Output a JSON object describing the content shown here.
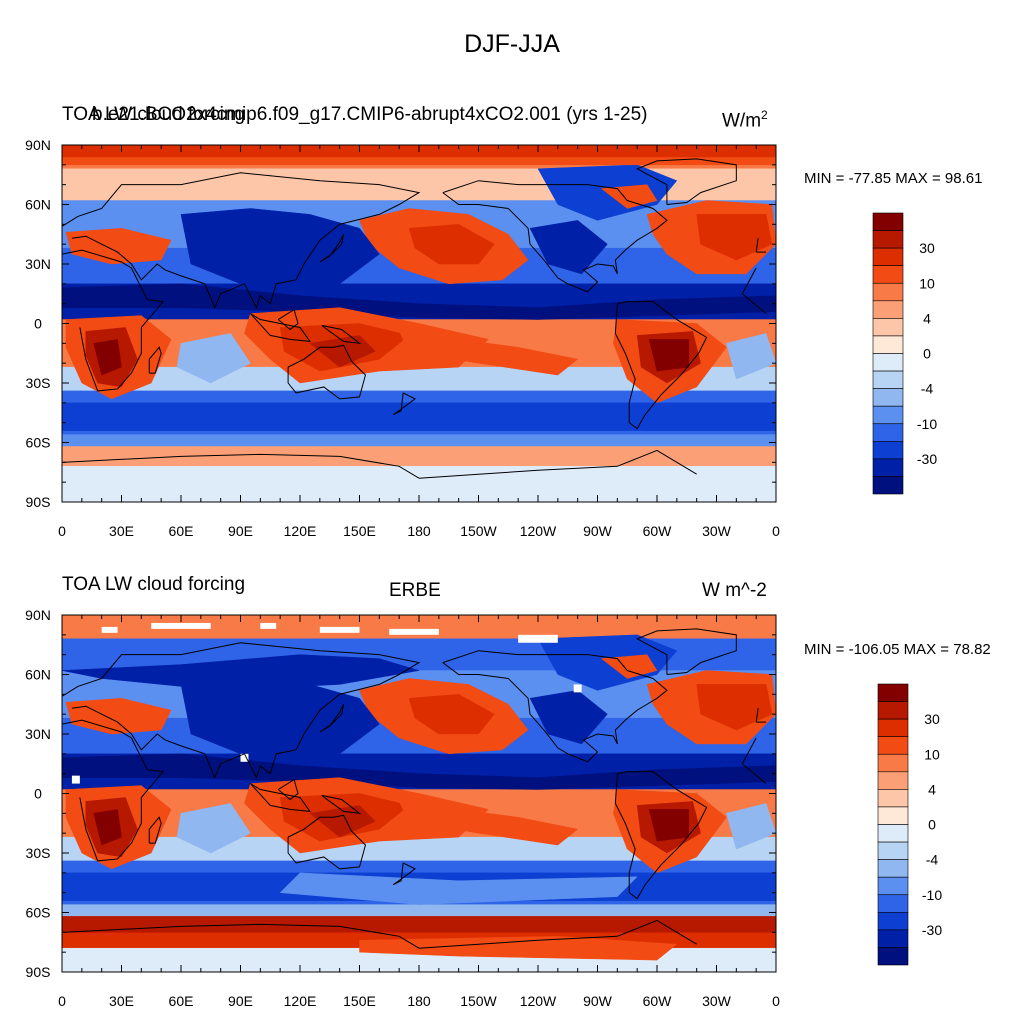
{
  "main_title": "DJF-JJA",
  "panels": [
    {
      "left_title": "TOA LW cloud forcing",
      "center_title": "b.e21.BCO2x4cmip6.f09_g17.CMIP6-abrupt4xCO2.001 (yrs 1-25)",
      "units": "W/m",
      "units_sup": "2",
      "stats": "MIN = -77.85 MAX =  98.61"
    },
    {
      "left_title": "TOA LW cloud forcing",
      "center_title": "ERBE",
      "units": "W m^-2",
      "units_sup": "",
      "stats": "MIN = -106.05 MAX =  78.82"
    }
  ],
  "axes": {
    "lat_ticks": [
      "90N",
      "60N",
      "30N",
      "0",
      "30S",
      "60S",
      "90S"
    ],
    "lon_ticks": [
      "0",
      "30E",
      "60E",
      "90E",
      "120E",
      "150E",
      "180",
      "150W",
      "120W",
      "90W",
      "60W",
      "30W",
      "0"
    ]
  },
  "colorbar": {
    "labels": [
      "30",
      "10",
      "4",
      "0",
      "-4",
      "-10",
      "-30"
    ],
    "levels_top_to_bottom": [
      ">50",
      "40",
      "30",
      "20",
      "10",
      "6",
      "4",
      "2",
      "0",
      "-2",
      "-4",
      "-6",
      "-10",
      "-20",
      "-30",
      "<-40"
    ],
    "colors_top_to_bottom": [
      "#830000",
      "#b71800",
      "#dd2e00",
      "#f24b14",
      "#f87a46",
      "#fba076",
      "#fdc6a8",
      "#fee8d8",
      "#deecfa",
      "#b8d4f5",
      "#90b7f0",
      "#5b8ff0",
      "#2f64e8",
      "#0d3fd2",
      "#0020a8",
      "#00107e"
    ]
  },
  "chart_data": {
    "type": "heatmap",
    "projection": "cylindrical equidistant (global)",
    "variable": "TOA LW cloud forcing, DJF minus JJA",
    "lon_range": [
      0,
      360
    ],
    "lat_range": [
      -90,
      90
    ],
    "panels": [
      {
        "dataset": "b.e21.BCO2x4cmip6.f09_g17.CMIP6-abrupt4xCO2.001 (yrs 1-25)",
        "min": -77.85,
        "max": 98.61
      },
      {
        "dataset": "ERBE",
        "min": -106.05,
        "max": 78.82
      }
    ]
  }
}
